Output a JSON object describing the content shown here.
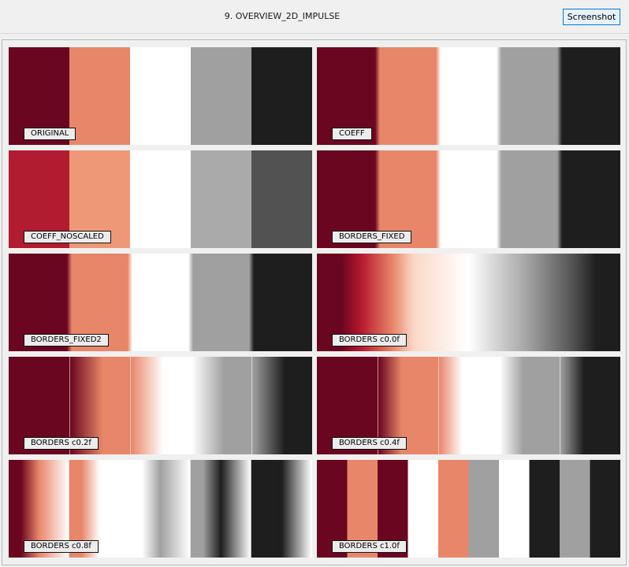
{
  "window": {
    "title": "9. OVERVIEW_2D_IMPULSE"
  },
  "toolbar": {
    "screenshot_label": "Screenshot"
  },
  "palette": {
    "normal": [
      "#6b0620",
      "#e8866a",
      "#ffffff",
      "#a0a0a0",
      "#1e1e1e"
    ],
    "noscaled": [
      "#b21c30",
      "#ee9878",
      "#ffffff",
      "#aaaaaa",
      "#525252"
    ]
  },
  "panels": [
    {
      "label": "ORIGINAL",
      "style": "hard",
      "colors": "normal"
    },
    {
      "label": "COEFF",
      "style": "soft",
      "colors": "normal"
    },
    {
      "label": "COEFF_NOSCALED",
      "style": "hard",
      "colors": "noscaled"
    },
    {
      "label": "BORDERS_FIXED",
      "style": "soft",
      "colors": "normal"
    },
    {
      "label": "BORDERS_FIXED2",
      "style": "soft",
      "colors": "normal"
    },
    {
      "label": "BORDERS c0.0f",
      "style": "smooth",
      "colors": "normal"
    },
    {
      "label": "BORDERS c0.2f",
      "style": "ramps",
      "colors": "normal"
    },
    {
      "label": "BORDERS c0.4f",
      "style": "ramps2",
      "colors": "normal"
    },
    {
      "label": "BORDERS c0.8f",
      "style": "ramps3",
      "colors": "normal"
    },
    {
      "label": "BORDERS c1.0f",
      "style": "tiles",
      "colors": "normal"
    }
  ]
}
